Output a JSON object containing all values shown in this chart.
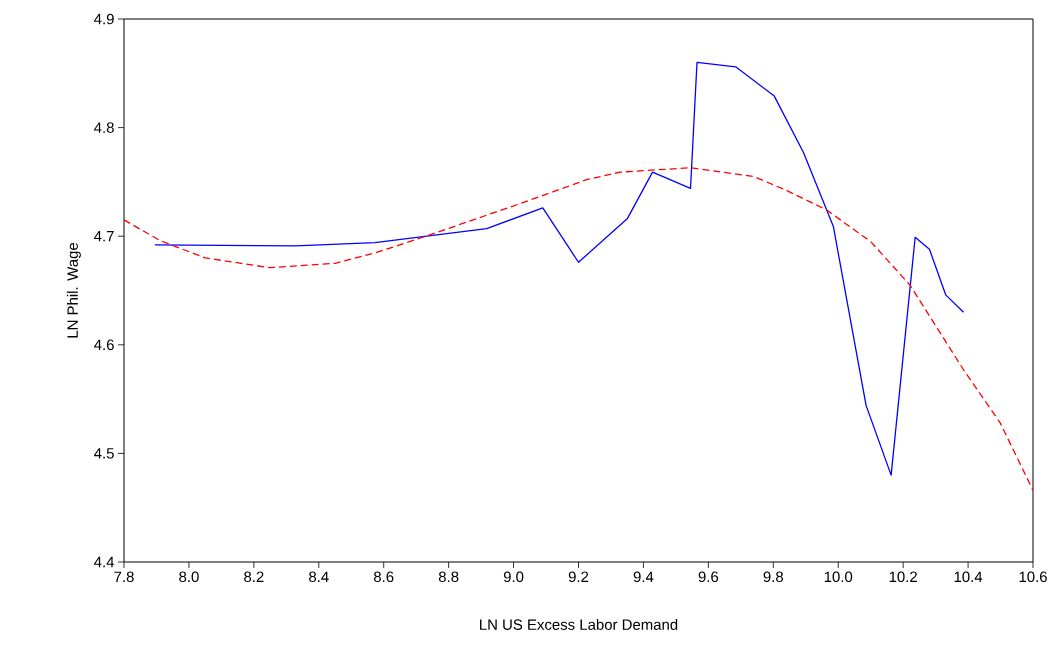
{
  "chart_data": {
    "type": "line",
    "xlabel": "LN US Excess Labor Demand",
    "ylabel": "LN Phil. Wage",
    "xlim": [
      7.8,
      10.6
    ],
    "xticks": [
      7.8,
      {
        "value": 8,
        "label": "8.0"
      },
      8.2,
      8.4,
      8.6,
      8.8,
      {
        "value": 9,
        "label": "9.0"
      },
      9.2,
      9.4,
      9.6,
      9.8,
      {
        "value": 10,
        "label": "10.0"
      },
      10.2,
      10.4,
      10.6
    ],
    "ylim": [
      4.4,
      4.9
    ],
    "yticks": [
      4.4,
      4.5,
      4.6,
      4.7,
      4.8,
      4.9
    ],
    "grid": false,
    "marker": "none",
    "series": [
      {
        "color": "#0000ff",
        "line_style": "solid",
        "x": [
          7.895,
          8.327,
          8.573,
          8.917,
          9.09,
          9.2,
          9.35,
          9.428,
          9.545,
          9.565,
          9.684,
          9.803,
          9.893,
          9.985,
          10.086,
          10.163,
          10.237,
          10.281,
          10.331,
          10.386
        ],
        "values": [
          4.692,
          4.691,
          4.694,
          4.707,
          4.726,
          4.676,
          4.716,
          4.759,
          4.744,
          4.86,
          4.856,
          4.829,
          4.777,
          4.709,
          4.544,
          4.48,
          4.699,
          4.688,
          4.646,
          4.63
        ]
      },
      {
        "color": "#ff0000",
        "line_style": "dashed",
        "x": [
          7.8,
          7.911,
          8.05,
          8.25,
          8.45,
          8.578,
          8.74,
          9.02,
          9.225,
          9.328,
          9.544,
          9.739,
          9.842,
          9.965,
          10.1,
          10.221,
          10.386,
          10.499,
          10.6
        ],
        "values": [
          4.715,
          4.696,
          4.68,
          4.671,
          4.675,
          4.685,
          4.701,
          4.73,
          4.752,
          4.759,
          4.763,
          4.755,
          4.742,
          4.724,
          4.695,
          4.655,
          4.577,
          4.528,
          4.466
        ]
      }
    ]
  }
}
